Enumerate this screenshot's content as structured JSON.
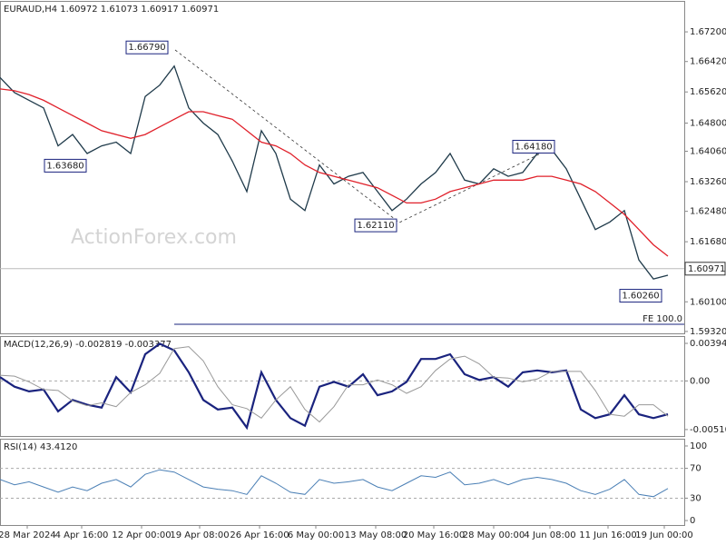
{
  "chart_data": [
    {
      "type": "line",
      "title": "EURAUD,H4  1.60972 1.61073 1.60917 1.60971",
      "watermark": "ActionForex.com",
      "x": [
        0,
        8,
        16,
        24,
        32,
        40,
        48,
        56,
        64,
        72,
        80,
        88,
        96,
        104,
        112,
        120,
        128,
        136,
        144,
        152,
        160,
        168,
        176,
        184,
        192,
        200,
        208,
        216,
        224,
        232,
        240,
        248,
        256,
        264,
        272,
        280,
        288,
        296,
        304,
        312,
        320,
        328,
        336,
        344,
        352,
        360,
        368
      ],
      "xlim": [
        0,
        377
      ],
      "ylim": [
        1.5927,
        1.6799
      ],
      "yticks": [
        {
          "value": 1.672,
          "label": "1.67200"
        },
        {
          "value": 1.6642,
          "label": "1.66420"
        },
        {
          "value": 1.6562,
          "label": "1.65620"
        },
        {
          "value": 1.648,
          "label": "1.64800"
        },
        {
          "value": 1.6406,
          "label": "1.64060"
        },
        {
          "value": 1.6326,
          "label": "1.63260"
        },
        {
          "value": 1.6248,
          "label": "1.62480"
        },
        {
          "value": 1.6168,
          "label": "1.61680"
        },
        {
          "value": 1.601,
          "label": "1.60100"
        },
        {
          "value": 1.5932,
          "label": "1.59320"
        }
      ],
      "series": [
        {
          "name": "EURAUD",
          "color": "#1f3a4a",
          "values": [
            1.66,
            1.656,
            1.654,
            1.652,
            1.642,
            1.645,
            1.64,
            1.642,
            1.643,
            1.64,
            1.655,
            1.658,
            1.663,
            1.652,
            1.648,
            1.645,
            1.638,
            1.63,
            1.646,
            1.64,
            1.628,
            1.625,
            1.637,
            1.632,
            1.634,
            1.635,
            1.63,
            1.625,
            1.628,
            1.632,
            1.635,
            1.64,
            1.633,
            1.632,
            1.636,
            1.634,
            1.635,
            1.64,
            1.641,
            1.636,
            1.628,
            1.62,
            1.622,
            1.625,
            1.612,
            1.607,
            1.608
          ]
        },
        {
          "name": "MA",
          "color": "#e0202a",
          "values": [
            1.657,
            1.6565,
            1.6555,
            1.654,
            1.652,
            1.65,
            1.648,
            1.646,
            1.645,
            1.644,
            1.645,
            1.647,
            1.649,
            1.651,
            1.651,
            1.65,
            1.649,
            1.646,
            1.643,
            1.642,
            1.64,
            1.637,
            1.635,
            1.634,
            1.633,
            1.632,
            1.631,
            1.629,
            1.627,
            1.627,
            1.628,
            1.63,
            1.631,
            1.632,
            1.633,
            1.633,
            1.633,
            1.634,
            1.634,
            1.633,
            1.632,
            1.63,
            1.627,
            1.624,
            1.62,
            1.616,
            1.613
          ]
        }
      ],
      "annotations": [
        {
          "label": "1.66790",
          "value": 1.6679,
          "x": 81
        },
        {
          "label": "1.63680",
          "value": 1.6368,
          "x": 36
        },
        {
          "label": "1.62110",
          "value": 1.6211,
          "x": 207
        },
        {
          "label": "1.64180",
          "value": 1.6418,
          "x": 294
        },
        {
          "label": "1.60260",
          "value": 1.6026,
          "x": 353
        }
      ],
      "current": {
        "value": 1.60971,
        "label": "1.60971"
      },
      "fe_level": {
        "value": 1.5951,
        "label": "FE 100.0",
        "x": 96
      }
    },
    {
      "type": "line",
      "title": "MACD(12,26,9) -0.002819 -0.003377",
      "x": [
        0,
        8,
        16,
        24,
        32,
        40,
        48,
        56,
        64,
        72,
        80,
        88,
        96,
        104,
        112,
        120,
        128,
        136,
        144,
        152,
        160,
        168,
        176,
        184,
        192,
        200,
        208,
        216,
        224,
        232,
        240,
        248,
        256,
        264,
        272,
        280,
        288,
        296,
        304,
        312,
        320,
        328,
        336,
        344,
        352,
        360,
        368
      ],
      "xlim": [
        0,
        377
      ],
      "ylim": [
        -0.00578,
        0.00461
      ],
      "yticks": [
        0.003941,
        {
          "value": 0,
          "label": "0.00"
        },
        -0.005103
      ],
      "levels": [
        0
      ],
      "series": [
        {
          "name": "MACD",
          "color": "#1a237e",
          "width": 2.2,
          "values": [
            0.0004,
            -0.0006,
            -0.0011,
            -0.0009,
            -0.0032,
            -0.002,
            -0.0025,
            -0.0028,
            0.0004,
            -0.0012,
            0.0028,
            0.0039,
            0.0032,
            0.0009,
            -0.002,
            -0.003,
            -0.0028,
            -0.0049,
            0.0009,
            -0.002,
            -0.0039,
            -0.0047,
            -0.0006,
            -0.0001,
            -0.0006,
            0.0007,
            -0.0015,
            -0.0011,
            -0.0001,
            0.0023,
            0.0023,
            0.0028,
            0.0007,
            0.0001,
            0.0004,
            -0.0006,
            0.0009,
            0.0011,
            0.0009,
            0.0011,
            -0.003,
            -0.0039,
            -0.0035,
            -0.0015,
            -0.0035,
            -0.0039,
            -0.0035
          ]
        },
        {
          "name": "Signal",
          "color": "#999999",
          "width": 1,
          "values": [
            0.0006,
            0.0005,
            -0.0001,
            -0.0009,
            -0.001,
            -0.0021,
            -0.0026,
            -0.0023,
            -0.0027,
            -0.0012,
            -0.0004,
            0.0008,
            0.0034,
            0.0036,
            0.0021,
            -0.0006,
            -0.0025,
            -0.0029,
            -0.0039,
            -0.002,
            -0.0006,
            -0.003,
            -0.0043,
            -0.0027,
            -0.0004,
            -0.0004,
            0.0001,
            -0.0004,
            -0.0013,
            -0.0006,
            0.0011,
            0.0023,
            0.0026,
            0.0018,
            0.0004,
            0.0003,
            -0.0001,
            0.0002,
            0.001,
            0.001,
            0.001,
            -0.001,
            -0.0035,
            -0.0037,
            -0.0025,
            -0.0025,
            -0.0037
          ]
        }
      ]
    },
    {
      "type": "line",
      "title": "RSI(14) 43.4120",
      "x": [
        0,
        8,
        16,
        24,
        32,
        40,
        48,
        56,
        64,
        72,
        80,
        88,
        96,
        104,
        112,
        120,
        128,
        136,
        144,
        152,
        160,
        168,
        176,
        184,
        192,
        200,
        208,
        216,
        224,
        232,
        240,
        248,
        256,
        264,
        272,
        280,
        288,
        296,
        304,
        312,
        320,
        328,
        336,
        344,
        352,
        360,
        368
      ],
      "xlim": [
        0,
        377
      ],
      "ylim": [
        -6,
        108.5
      ],
      "yticks": [
        100,
        70,
        30,
        0
      ],
      "levels": [
        70,
        30
      ],
      "series": [
        {
          "name": "RSI",
          "color": "#4a7fb5",
          "width": 1,
          "values": [
            55,
            48,
            52,
            45,
            38,
            45,
            40,
            50,
            55,
            45,
            62,
            68,
            65,
            55,
            45,
            42,
            40,
            35,
            60,
            50,
            38,
            35,
            55,
            50,
            52,
            55,
            45,
            40,
            50,
            60,
            58,
            65,
            48,
            50,
            55,
            48,
            55,
            58,
            55,
            50,
            40,
            35,
            42,
            55,
            35,
            32,
            43
          ]
        }
      ],
      "xticks": [
        {
          "value": 15,
          "label": "28 Mar 2024"
        },
        {
          "value": 45,
          "label": "4 Apr 16:00"
        },
        {
          "value": 78,
          "label": "12 Apr 00:00"
        },
        {
          "value": 110,
          "label": "19 Apr 08:00"
        },
        {
          "value": 143,
          "label": "26 Apr 16:00"
        },
        {
          "value": 174,
          "label": "6 May 00:00"
        },
        {
          "value": 207,
          "label": "13 May 08:00"
        },
        {
          "value": 239,
          "label": "20 May 16:00"
        },
        {
          "value": 272,
          "label": "28 May 00:00"
        },
        {
          "value": 303,
          "label": "4 Jun 08:00"
        },
        {
          "value": 335,
          "label": "11 Jun 16:00"
        },
        {
          "value": 366,
          "label": "19 Jun 00:00"
        }
      ]
    }
  ]
}
